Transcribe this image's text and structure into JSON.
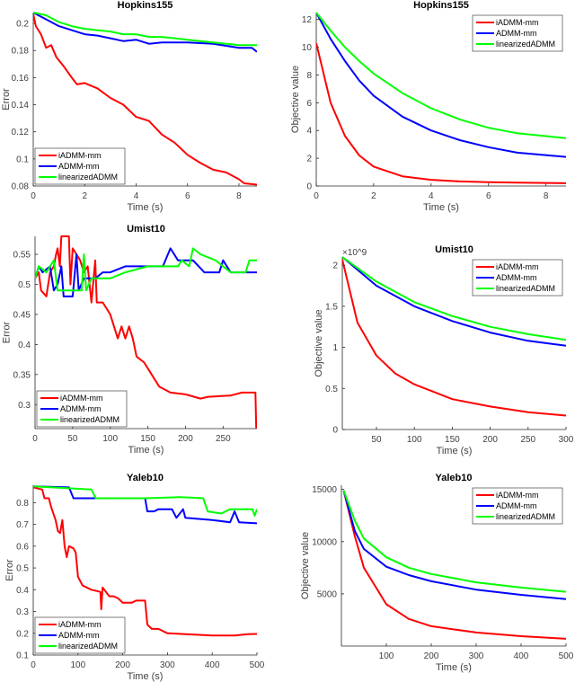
{
  "colors": {
    "iADMM-mm": "#ff0000",
    "ADMM-mm": "#0000ff",
    "linearizedADMM": "#00ff00"
  },
  "chart_data": [
    {
      "type": "line",
      "title": "Hopkins155",
      "xlabel": "Time (s)",
      "ylabel": "Error",
      "xlim": [
        0,
        8.7
      ],
      "ylim": [
        0.08,
        0.208
      ],
      "xticks": [
        0,
        2,
        4,
        6,
        8
      ],
      "yticks": [
        0.08,
        0.1,
        0.12,
        0.14,
        0.16,
        0.18,
        0.2
      ],
      "legend": "bottom-left",
      "grid": false,
      "series": [
        {
          "name": "iADMM-mm",
          "x": [
            0,
            0.1,
            0.3,
            0.5,
            0.7,
            0.9,
            1.2,
            1.5,
            1.7,
            2,
            2.5,
            3,
            3.5,
            4,
            4.5,
            5,
            5.5,
            6,
            6.5,
            7,
            7.5,
            8,
            8.2,
            8.7
          ],
          "y": [
            0.207,
            0.198,
            0.192,
            0.182,
            0.184,
            0.175,
            0.168,
            0.16,
            0.155,
            0.156,
            0.152,
            0.145,
            0.14,
            0.131,
            0.128,
            0.118,
            0.112,
            0.103,
            0.097,
            0.092,
            0.09,
            0.085,
            0.082,
            0.081
          ]
        },
        {
          "name": "ADMM-mm",
          "x": [
            0,
            0.5,
            1,
            1.5,
            2,
            2.5,
            3,
            3.5,
            4,
            4.5,
            5,
            6,
            7,
            8,
            8.5,
            8.7
          ],
          "y": [
            0.208,
            0.203,
            0.198,
            0.195,
            0.192,
            0.191,
            0.189,
            0.187,
            0.188,
            0.185,
            0.186,
            0.186,
            0.185,
            0.182,
            0.182,
            0.179
          ]
        },
        {
          "name": "linearizedADMM",
          "x": [
            0,
            0.5,
            1,
            1.5,
            2,
            2.5,
            3,
            3.5,
            4,
            4.5,
            5,
            5.5,
            6,
            7,
            7.5,
            8,
            8.7
          ],
          "y": [
            0.208,
            0.206,
            0.201,
            0.198,
            0.196,
            0.195,
            0.194,
            0.192,
            0.192,
            0.19,
            0.19,
            0.189,
            0.188,
            0.186,
            0.185,
            0.184,
            0.184
          ]
        }
      ]
    },
    {
      "type": "line",
      "title": "Hopkins155",
      "xlabel": "Time (s)",
      "ylabel": "Objective value",
      "xlim": [
        0,
        8.7
      ],
      "ylim": [
        0,
        12.5
      ],
      "xticks": [
        0,
        2,
        4,
        6,
        8
      ],
      "yticks": [
        0,
        2,
        4,
        6,
        8,
        10,
        12
      ],
      "legend": "top-right",
      "grid": false,
      "series": [
        {
          "name": "iADMM-mm",
          "x": [
            0,
            0.5,
            1,
            1.5,
            2,
            3,
            4,
            5,
            6,
            7,
            8.7
          ],
          "y": [
            10.3,
            6,
            3.6,
            2.2,
            1.4,
            0.7,
            0.45,
            0.33,
            0.27,
            0.24,
            0.2
          ]
        },
        {
          "name": "ADMM-mm",
          "x": [
            0,
            0.5,
            1,
            1.5,
            2,
            3,
            4,
            5,
            6,
            7,
            8.7
          ],
          "y": [
            12.5,
            10.6,
            9,
            7.6,
            6.5,
            5,
            4,
            3.3,
            2.8,
            2.4,
            2.1
          ]
        },
        {
          "name": "linearizedADMM",
          "x": [
            0,
            0.5,
            1,
            1.5,
            2,
            3,
            4,
            5,
            6,
            7,
            8.7
          ],
          "y": [
            12.5,
            11.2,
            10,
            9,
            8.1,
            6.7,
            5.6,
            4.8,
            4.2,
            3.8,
            3.45
          ]
        }
      ]
    },
    {
      "type": "line",
      "title": "Umist10",
      "xlabel": "Time (s)",
      "ylabel": "Error",
      "xlim": [
        0,
        295
      ],
      "ylim": [
        0.26,
        0.58
      ],
      "xticks": [
        0,
        50,
        100,
        150,
        200,
        250
      ],
      "yticks": [
        0.3,
        0.35,
        0.4,
        0.45,
        0.5,
        0.55
      ],
      "legend": "bottom-left",
      "grid": false,
      "series": [
        {
          "name": "iADMM-mm",
          "x": [
            0,
            5,
            8,
            15,
            20,
            25,
            28,
            30,
            33,
            35,
            45,
            47,
            50,
            60,
            65,
            70,
            75,
            80,
            82,
            90,
            100,
            110,
            115,
            120,
            125,
            130,
            135,
            145,
            155,
            165,
            180,
            200,
            220,
            230,
            260,
            275,
            293,
            294
          ],
          "y": [
            0.51,
            0.52,
            0.49,
            0.48,
            0.52,
            0.53,
            0.55,
            0.56,
            0.53,
            0.58,
            0.58,
            0.5,
            0.56,
            0.54,
            0.52,
            0.53,
            0.47,
            0.54,
            0.47,
            0.47,
            0.45,
            0.41,
            0.43,
            0.41,
            0.43,
            0.41,
            0.38,
            0.37,
            0.35,
            0.33,
            0.32,
            0.317,
            0.31,
            0.313,
            0.315,
            0.32,
            0.32,
            0.26
          ]
        },
        {
          "name": "ADMM-mm",
          "x": [
            0,
            5,
            10,
            20,
            25,
            30,
            35,
            38,
            50,
            55,
            58,
            65,
            80,
            90,
            100,
            120,
            140,
            150,
            170,
            180,
            190,
            210,
            225,
            245,
            250,
            260,
            295
          ],
          "y": [
            0.51,
            0.53,
            0.52,
            0.53,
            0.49,
            0.5,
            0.53,
            0.48,
            0.48,
            0.55,
            0.49,
            0.51,
            0.51,
            0.52,
            0.52,
            0.53,
            0.53,
            0.53,
            0.53,
            0.56,
            0.54,
            0.54,
            0.52,
            0.52,
            0.54,
            0.52,
            0.52
          ]
        },
        {
          "name": "linearizedADMM",
          "x": [
            0,
            5,
            15,
            25,
            30,
            45,
            62,
            65,
            68,
            75,
            100,
            120,
            150,
            170,
            190,
            195,
            205,
            210,
            220,
            240,
            260,
            280,
            285,
            295
          ],
          "y": [
            0.51,
            0.53,
            0.52,
            0.54,
            0.49,
            0.49,
            0.49,
            0.55,
            0.49,
            0.51,
            0.51,
            0.52,
            0.53,
            0.53,
            0.53,
            0.54,
            0.53,
            0.56,
            0.55,
            0.54,
            0.52,
            0.52,
            0.54,
            0.54
          ]
        }
      ]
    },
    {
      "type": "line",
      "title": "Umist10",
      "xlabel": "Time (s)",
      "ylabel": "Objective value",
      "y_exponent_label": "×10^9",
      "xlim": [
        5,
        300
      ],
      "ylim": [
        0,
        2.1
      ],
      "xticks": [
        50,
        100,
        150,
        200,
        250,
        300
      ],
      "yticks": [
        0,
        0.5,
        1,
        1.5,
        2
      ],
      "legend": "top-right",
      "grid": false,
      "series": [
        {
          "name": "iADMM-mm",
          "x": [
            5,
            25,
            50,
            75,
            100,
            150,
            200,
            250,
            300
          ],
          "y": [
            2.07,
            1.3,
            0.9,
            0.68,
            0.55,
            0.37,
            0.28,
            0.21,
            0.17
          ]
        },
        {
          "name": "ADMM-mm",
          "x": [
            5,
            50,
            100,
            150,
            200,
            250,
            300
          ],
          "y": [
            2.1,
            1.75,
            1.5,
            1.32,
            1.18,
            1.08,
            1.02
          ]
        },
        {
          "name": "linearizedADMM",
          "x": [
            5,
            50,
            100,
            150,
            200,
            250,
            300
          ],
          "y": [
            2.1,
            1.8,
            1.55,
            1.38,
            1.25,
            1.16,
            1.09
          ]
        }
      ]
    },
    {
      "type": "line",
      "title": "Yaleb10",
      "xlabel": "Time (s)",
      "ylabel": "Error",
      "xlim": [
        0,
        500
      ],
      "ylim": [
        0.1,
        0.88
      ],
      "xticks": [
        0,
        100,
        200,
        300,
        400,
        500
      ],
      "yticks": [
        0.1,
        0.2,
        0.3,
        0.4,
        0.5,
        0.6,
        0.7,
        0.8
      ],
      "legend": "bottom-left",
      "grid": false,
      "series": [
        {
          "name": "iADMM-mm",
          "x": [
            0,
            20,
            25,
            35,
            40,
            50,
            55,
            60,
            65,
            70,
            75,
            80,
            90,
            95,
            100,
            110,
            130,
            150,
            152,
            155,
            170,
            180,
            190,
            200,
            220,
            230,
            250,
            255,
            265,
            280,
            300,
            350,
            400,
            450,
            480,
            500
          ],
          "y": [
            0.87,
            0.86,
            0.82,
            0.82,
            0.78,
            0.72,
            0.67,
            0.66,
            0.72,
            0.6,
            0.55,
            0.6,
            0.59,
            0.57,
            0.46,
            0.42,
            0.4,
            0.39,
            0.31,
            0.41,
            0.37,
            0.37,
            0.36,
            0.34,
            0.34,
            0.35,
            0.35,
            0.24,
            0.22,
            0.22,
            0.2,
            0.195,
            0.19,
            0.19,
            0.196,
            0.197
          ]
        },
        {
          "name": "ADMM-mm",
          "x": [
            0,
            80,
            90,
            150,
            200,
            250,
            255,
            270,
            280,
            310,
            320,
            335,
            340,
            400,
            440,
            450,
            460,
            500
          ],
          "y": [
            0.875,
            0.87,
            0.82,
            0.82,
            0.82,
            0.82,
            0.76,
            0.76,
            0.77,
            0.77,
            0.73,
            0.77,
            0.73,
            0.72,
            0.71,
            0.76,
            0.71,
            0.705
          ]
        },
        {
          "name": "linearizedADMM",
          "x": [
            0,
            130,
            140,
            250,
            330,
            380,
            390,
            420,
            440,
            490,
            495,
            500
          ],
          "y": [
            0.875,
            0.86,
            0.82,
            0.82,
            0.825,
            0.82,
            0.76,
            0.75,
            0.77,
            0.77,
            0.74,
            0.77
          ]
        }
      ]
    },
    {
      "type": "line",
      "title": "Yaleb10",
      "xlabel": "Time (s)",
      "ylabel": "Objective value",
      "xlim": [
        0,
        500
      ],
      "ylim": [
        0,
        15400
      ],
      "xticks": [
        100,
        200,
        300,
        400,
        500
      ],
      "yticks": [
        5000,
        10000,
        15000
      ],
      "legend": "top-right",
      "grid": false,
      "series": [
        {
          "name": "iADMM-mm",
          "x": [
            5,
            30,
            50,
            100,
            150,
            200,
            300,
            400,
            500
          ],
          "y": [
            14900,
            10500,
            7500,
            4000,
            2600,
            1900,
            1300,
            950,
            700
          ]
        },
        {
          "name": "ADMM-mm",
          "x": [
            5,
            30,
            50,
            100,
            150,
            200,
            300,
            400,
            500
          ],
          "y": [
            14900,
            11000,
            9300,
            7600,
            6800,
            6200,
            5400,
            4900,
            4500
          ]
        },
        {
          "name": "linearizedADMM",
          "x": [
            5,
            30,
            50,
            100,
            150,
            200,
            300,
            400,
            500
          ],
          "y": [
            14900,
            12000,
            10300,
            8500,
            7500,
            6900,
            6100,
            5600,
            5200
          ]
        }
      ]
    }
  ]
}
